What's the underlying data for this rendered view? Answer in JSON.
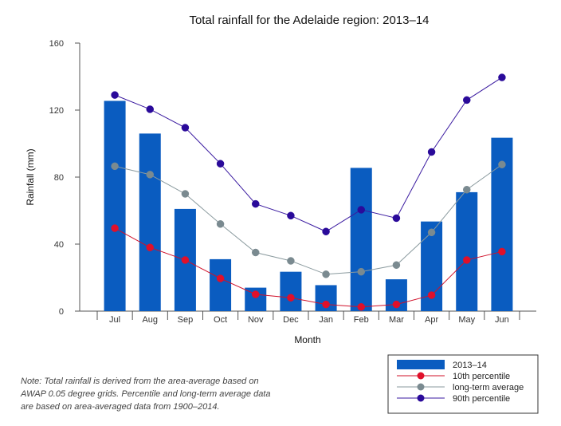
{
  "chart_data": {
    "type": "bar",
    "title": "Total rainfall for the Adelaide region: 2013–14",
    "xlabel": "Month",
    "ylabel": "Rainfall (mm)",
    "ylim": [
      0,
      160
    ],
    "yticks": [
      0,
      40,
      80,
      120,
      160
    ],
    "categories": [
      "Jul",
      "Aug",
      "Sep",
      "Oct",
      "Nov",
      "Dec",
      "Jan",
      "Feb",
      "Mar",
      "Apr",
      "May",
      "Jun"
    ],
    "series": [
      {
        "name": "2013–14",
        "kind": "bar",
        "color": "#0a5cc0",
        "values": [
          125.5,
          106,
          61,
          31,
          14,
          23.5,
          15.5,
          85.5,
          19,
          53.5,
          71,
          103.5
        ]
      },
      {
        "name": "10th percentile",
        "kind": "line",
        "color": "#e0102a",
        "line_color": "#d0102a",
        "values": [
          49.5,
          38,
          30.5,
          19.5,
          10,
          8,
          4,
          2.5,
          4,
          9.5,
          30.5,
          35.5
        ]
      },
      {
        "name": "long-term average",
        "kind": "line",
        "color": "#7a8a90",
        "line_color": "#8a9a9e",
        "values": [
          86.5,
          81.5,
          70,
          52,
          35,
          30,
          22,
          23.5,
          27.5,
          47,
          72.5,
          87.5
        ]
      },
      {
        "name": "90th percentile",
        "kind": "line",
        "color": "#2a0a9a",
        "line_color": "#3a1aa0",
        "values": [
          129,
          120.5,
          109.5,
          88,
          64,
          57,
          47.5,
          60.5,
          55.5,
          95,
          126,
          139.5
        ]
      }
    ],
    "legend_position": "bottom-right"
  },
  "note": {
    "lines": [
      "Note: Total rainfall is derived from the area-average based on",
      "AWAP 0.05 degree grids. Percentile and long-term average data",
      "are based on area-averaged data from 1900–2014."
    ]
  }
}
